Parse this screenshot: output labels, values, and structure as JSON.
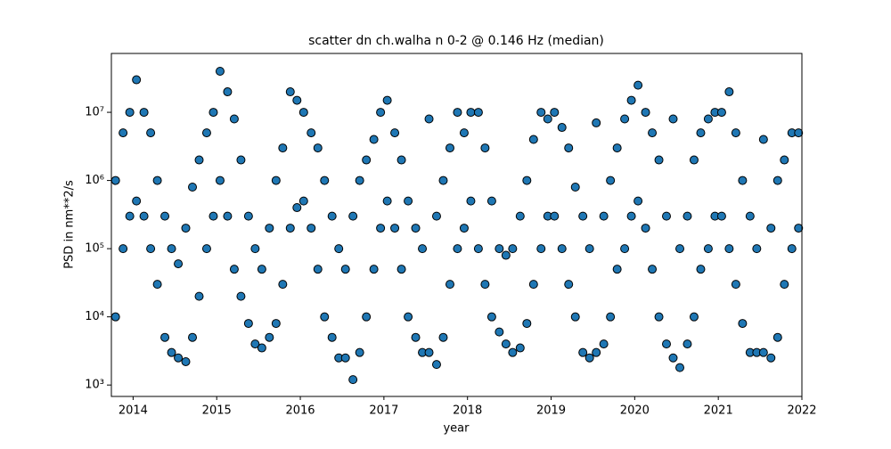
{
  "chart_data": {
    "type": "scatter",
    "title": "scatter dn ch.walha n 0-2 @ 0.146 Hz (median)",
    "x_label": "year",
    "y_label": "PSD in nm**2/s",
    "color": "#1f77b4",
    "log_y": true,
    "xlim": [
      2013.74,
      2022
    ],
    "ylim": [
      680,
      73000000
    ],
    "xticks": [
      2014,
      2015,
      2016,
      2017,
      2018,
      2019,
      2020,
      2021,
      2022
    ],
    "yticks": [
      {
        "value": 1000,
        "label": "10³"
      },
      {
        "value": 10000,
        "label": "10⁴"
      },
      {
        "value": 100000,
        "label": "10⁵"
      },
      {
        "value": 1000000,
        "label": "10⁶"
      },
      {
        "value": 10000000,
        "label": "10⁷"
      }
    ],
    "x": [
      2013.79,
      2013.79,
      2013.88,
      2013.88,
      2013.96,
      2013.96,
      2014.04,
      2014.04,
      2014.13,
      2014.13,
      2014.21,
      2014.21,
      2014.29,
      2014.29,
      2014.38,
      2014.38,
      2014.46,
      2014.46,
      2014.54,
      2014.54,
      2014.63,
      2014.63,
      2014.71,
      2014.71,
      2014.79,
      2014.79,
      2014.88,
      2014.88,
      2014.96,
      2014.96,
      2015.04,
      2015.04,
      2015.13,
      2015.13,
      2015.21,
      2015.21,
      2015.29,
      2015.29,
      2015.38,
      2015.38,
      2015.46,
      2015.46,
      2015.54,
      2015.54,
      2015.63,
      2015.63,
      2015.71,
      2015.71,
      2015.79,
      2015.79,
      2015.88,
      2015.88,
      2015.96,
      2015.96,
      2016.04,
      2016.04,
      2016.13,
      2016.13,
      2016.21,
      2016.21,
      2016.29,
      2016.29,
      2016.38,
      2016.38,
      2016.46,
      2016.46,
      2016.54,
      2016.54,
      2016.63,
      2016.63,
      2016.71,
      2016.71,
      2016.79,
      2016.79,
      2016.88,
      2016.88,
      2016.96,
      2016.96,
      2017.04,
      2017.04,
      2017.13,
      2017.13,
      2017.21,
      2017.21,
      2017.29,
      2017.29,
      2017.38,
      2017.38,
      2017.46,
      2017.46,
      2017.54,
      2017.54,
      2017.63,
      2017.63,
      2017.71,
      2017.71,
      2017.79,
      2017.79,
      2017.88,
      2017.88,
      2017.96,
      2017.96,
      2018.04,
      2018.04,
      2018.13,
      2018.13,
      2018.21,
      2018.21,
      2018.29,
      2018.29,
      2018.38,
      2018.38,
      2018.46,
      2018.46,
      2018.54,
      2018.54,
      2018.63,
      2018.63,
      2018.71,
      2018.71,
      2018.79,
      2018.79,
      2018.88,
      2018.88,
      2018.96,
      2018.96,
      2019.04,
      2019.04,
      2019.13,
      2019.13,
      2019.21,
      2019.21,
      2019.29,
      2019.29,
      2019.38,
      2019.38,
      2019.46,
      2019.46,
      2019.54,
      2019.54,
      2019.63,
      2019.63,
      2019.71,
      2019.71,
      2019.79,
      2019.79,
      2019.88,
      2019.88,
      2019.96,
      2019.96,
      2020.04,
      2020.04,
      2020.13,
      2020.13,
      2020.21,
      2020.21,
      2020.29,
      2020.29,
      2020.38,
      2020.38,
      2020.46,
      2020.46,
      2020.54,
      2020.54,
      2020.63,
      2020.63,
      2020.71,
      2020.71,
      2020.79,
      2020.79,
      2020.88,
      2020.88,
      2020.96,
      2020.96,
      2021.04,
      2021.04,
      2021.13,
      2021.13,
      2021.21,
      2021.21,
      2021.29,
      2021.29,
      2021.38,
      2021.38,
      2021.46,
      2021.46,
      2021.54,
      2021.54,
      2021.63,
      2021.63,
      2021.71,
      2021.71,
      2021.79,
      2021.79,
      2021.88,
      2021.88,
      2021.96,
      2021.96
    ],
    "values": [
      1000000.0,
      10000.0,
      5000000.0,
      100000.0,
      10000000.0,
      300000.0,
      30000000.0,
      500000.0,
      10000000.0,
      300000.0,
      5000000.0,
      100000.0,
      1000000.0,
      30000.0,
      300000.0,
      5000.0,
      100000.0,
      3000.0,
      60000.0,
      2500.0,
      200000.0,
      2200.0,
      800000.0,
      5000.0,
      2000000.0,
      20000.0,
      5000000.0,
      100000.0,
      10000000.0,
      300000.0,
      40000000.0,
      1000000.0,
      20000000.0,
      300000.0,
      8000000.0,
      50000.0,
      2000000.0,
      20000.0,
      300000.0,
      8000.0,
      100000.0,
      4000.0,
      50000.0,
      3500.0,
      200000.0,
      5000.0,
      1000000.0,
      8000.0,
      3000000.0,
      30000.0,
      20000000.0,
      200000.0,
      15000000.0,
      400000.0,
      10000000.0,
      500000.0,
      5000000.0,
      200000.0,
      3000000.0,
      50000.0,
      1000000.0,
      10000.0,
      300000.0,
      5000.0,
      100000.0,
      2500.0,
      50000.0,
      2500.0,
      300000.0,
      1200.0,
      1000000.0,
      3000.0,
      2000000.0,
      10000.0,
      4000000.0,
      50000.0,
      10000000.0,
      200000.0,
      15000000.0,
      500000.0,
      5000000.0,
      200000.0,
      2000000.0,
      50000.0,
      500000.0,
      10000.0,
      200000.0,
      5000.0,
      100000.0,
      3000.0,
      8000000.0,
      3000.0,
      300000.0,
      2000.0,
      1000000.0,
      5000.0,
      3000000.0,
      30000.0,
      10000000.0,
      100000.0,
      5000000.0,
      200000.0,
      10000000.0,
      500000.0,
      10000000.0,
      100000.0,
      3000000.0,
      30000.0,
      500000.0,
      10000.0,
      100000.0,
      6000.0,
      80000.0,
      4000.0,
      100000.0,
      3000.0,
      300000.0,
      3500.0,
      1000000.0,
      8000.0,
      4000000.0,
      30000.0,
      10000000.0,
      100000.0,
      8000000.0,
      300000.0,
      10000000.0,
      300000.0,
      6000000.0,
      100000.0,
      3000000.0,
      30000.0,
      800000.0,
      10000.0,
      300000.0,
      3000.0,
      100000.0,
      2500.0,
      7000000.0,
      3000.0,
      300000.0,
      4000.0,
      1000000.0,
      10000.0,
      3000000.0,
      50000.0,
      8000000.0,
      100000.0,
      15000000.0,
      300000.0,
      25000000.0,
      500000.0,
      10000000.0,
      200000.0,
      5000000.0,
      50000.0,
      2000000.0,
      10000.0,
      300000.0,
      4000.0,
      8000000.0,
      2500.0,
      100000.0,
      1800.0,
      300000.0,
      4000.0,
      2000000.0,
      10000.0,
      5000000.0,
      50000.0,
      8000000.0,
      100000.0,
      10000000.0,
      300000.0,
      10000000.0,
      300000.0,
      20000000.0,
      100000.0,
      5000000.0,
      30000.0,
      1000000.0,
      8000.0,
      300000.0,
      3000.0,
      100000.0,
      3000.0,
      4000000.0,
      3000.0,
      200000.0,
      2500.0,
      1000000.0,
      5000.0,
      2000000.0,
      30000.0,
      5000000.0,
      100000.0,
      5000000.0,
      200000.0
    ]
  }
}
